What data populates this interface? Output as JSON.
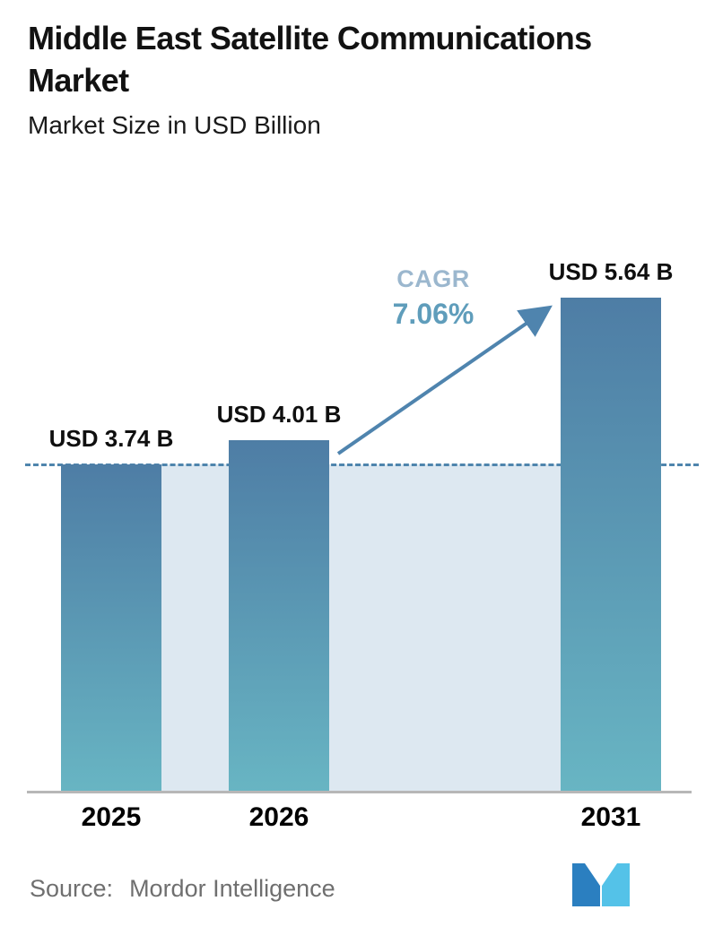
{
  "header": {
    "title": "Middle East Satellite Communications Market",
    "subtitle": "Market Size in USD Billion"
  },
  "chart_data": {
    "type": "bar",
    "title": "Middle East Satellite Communications Market",
    "subtitle": "Market Size in USD Billion",
    "unit": "USD Billion",
    "categories": [
      "2025",
      "2026",
      "2031"
    ],
    "values": [
      3.74,
      4.01,
      5.64
    ],
    "value_labels": [
      "USD 3.74 B",
      "USD 4.01 B",
      "USD 5.64 B"
    ],
    "ylim": [
      0,
      6
    ],
    "grid": false,
    "reference_line": {
      "value": 3.74,
      "style": "dashed"
    },
    "annotations": {
      "cagr_label": "CAGR",
      "cagr_value": "7.06%"
    },
    "colors": {
      "bar_top": "#4e7da5",
      "bar_bottom": "#68b5c3",
      "shade": "#dde8f1",
      "dashed": "#4f85ad",
      "arrow": "#4f84ae",
      "cagr_label": "#9bb7ce",
      "cagr_value": "#5f9dbb",
      "axis": "#b7b7b7"
    }
  },
  "footer": {
    "source_label": "Source:",
    "source_name": "Mordor Intelligence",
    "logo": "mordor-intelligence-logo",
    "logo_colors": {
      "dark": "#2b7fc0",
      "light": "#54c2e8"
    }
  }
}
